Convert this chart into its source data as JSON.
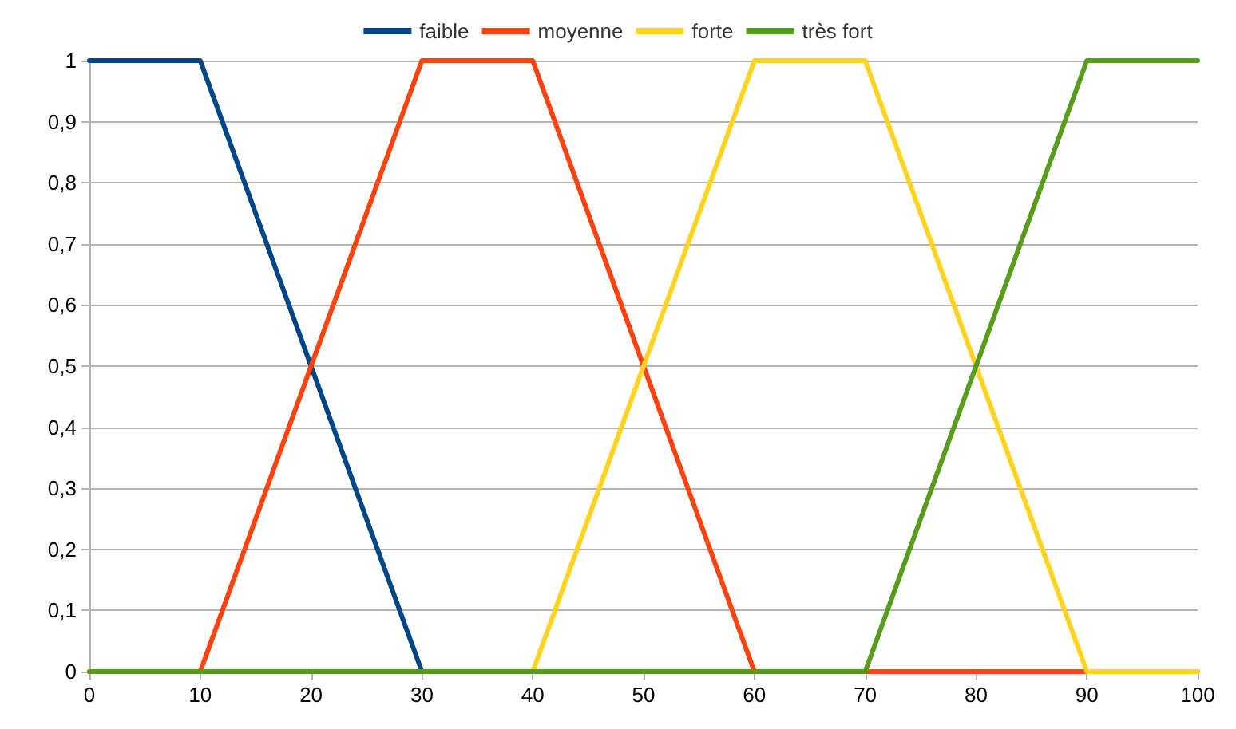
{
  "chart_data": {
    "type": "line",
    "legend": "top",
    "grid": "y",
    "marker": "none",
    "line_style": "solid",
    "xlim": [
      0,
      100
    ],
    "xticks": [
      0,
      10,
      20,
      30,
      40,
      50,
      60,
      70,
      80,
      90,
      100
    ],
    "ylim": [
      0,
      1
    ],
    "yticks": [
      0,
      {
        "value": 0.1,
        "label": "0,1"
      },
      {
        "value": 0.2,
        "label": "0,2"
      },
      {
        "value": 0.3,
        "label": "0,3"
      },
      {
        "value": 0.4,
        "label": "0,4"
      },
      {
        "value": 0.5,
        "label": "0,5"
      },
      {
        "value": 0.6,
        "label": "0,6"
      },
      {
        "value": 0.7,
        "label": "0,7"
      },
      {
        "value": 0.8,
        "label": "0,8"
      },
      {
        "value": 0.9,
        "label": "0,9"
      },
      1
    ],
    "series": [
      {
        "name": "faible",
        "color": "#004586",
        "x": [
          0,
          10,
          30
        ],
        "values": [
          1,
          1,
          0
        ]
      },
      {
        "name": "moyenne",
        "color": "#ff420e",
        "x": [
          0,
          10,
          30,
          40,
          60,
          100
        ],
        "values": [
          0,
          0,
          1,
          1,
          0,
          0
        ]
      },
      {
        "name": "forte",
        "color": "#ffd320",
        "x": [
          0,
          40,
          60,
          70,
          90,
          100
        ],
        "values": [
          0,
          0,
          1,
          1,
          0,
          0
        ]
      },
      {
        "name": "très fort",
        "color": "#579d1c",
        "x": [
          0,
          70,
          90,
          100
        ],
        "values": [
          0,
          0,
          1,
          1
        ]
      }
    ]
  }
}
